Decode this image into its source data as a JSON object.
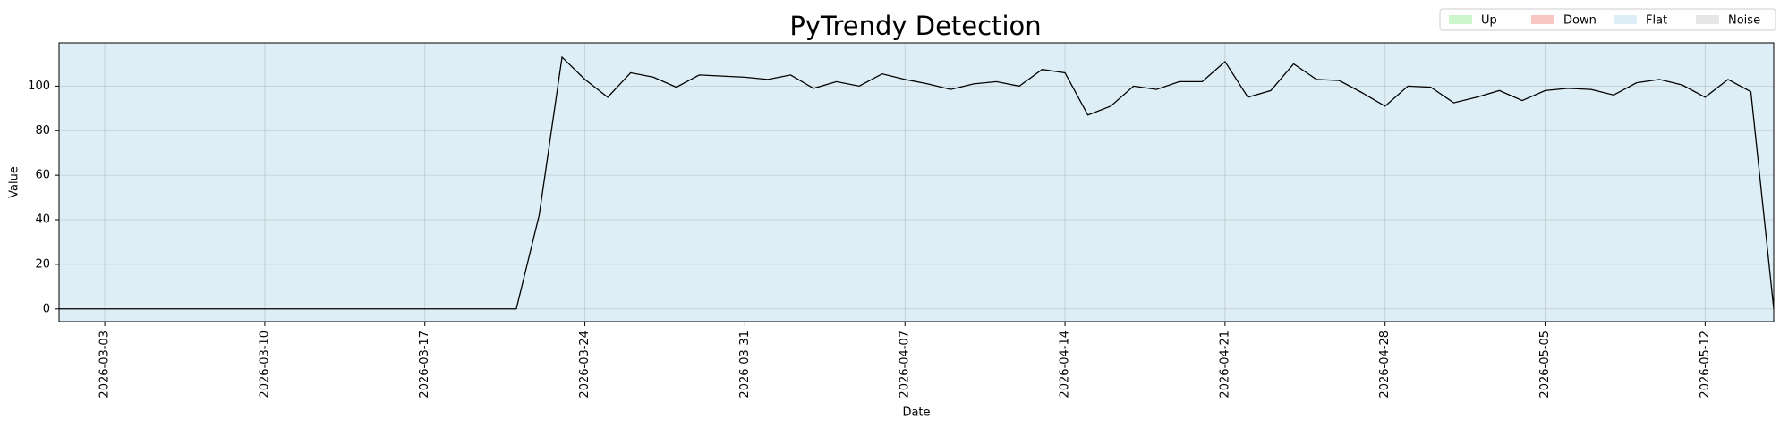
{
  "chart_data": {
    "type": "line",
    "title": "PyTrendy Detection",
    "x_label": "Date",
    "y_label": "Value",
    "x": [
      "2026-03-01",
      "2026-03-02",
      "2026-03-03",
      "2026-03-04",
      "2026-03-05",
      "2026-03-06",
      "2026-03-07",
      "2026-03-08",
      "2026-03-09",
      "2026-03-10",
      "2026-03-11",
      "2026-03-12",
      "2026-03-13",
      "2026-03-14",
      "2026-03-15",
      "2026-03-16",
      "2026-03-17",
      "2026-03-18",
      "2026-03-19",
      "2026-03-20",
      "2026-03-21",
      "2026-03-22",
      "2026-03-23",
      "2026-03-24",
      "2026-03-25",
      "2026-03-26",
      "2026-03-27",
      "2026-03-28",
      "2026-03-29",
      "2026-03-30",
      "2026-03-31",
      "2026-04-01",
      "2026-04-02",
      "2026-04-03",
      "2026-04-04",
      "2026-04-05",
      "2026-04-06",
      "2026-04-07",
      "2026-04-08",
      "2026-04-09",
      "2026-04-10",
      "2026-04-11",
      "2026-04-12",
      "2026-04-13",
      "2026-04-14",
      "2026-04-15",
      "2026-04-16",
      "2026-04-17",
      "2026-04-18",
      "2026-04-19",
      "2026-04-20",
      "2026-04-21",
      "2026-04-22",
      "2026-04-23",
      "2026-04-24",
      "2026-04-25",
      "2026-04-26",
      "2026-04-27",
      "2026-04-28",
      "2026-04-29",
      "2026-04-30",
      "2026-05-01",
      "2026-05-02",
      "2026-05-03",
      "2026-05-04",
      "2026-05-05",
      "2026-05-06",
      "2026-05-07",
      "2026-05-08",
      "2026-05-09",
      "2026-05-10",
      "2026-05-11",
      "2026-05-12",
      "2026-05-13",
      "2026-05-14",
      "2026-05-15"
    ],
    "series": [
      {
        "name": "Value",
        "color": "#000000",
        "values": [
          0,
          0,
          0,
          0,
          0,
          0,
          0,
          0,
          0,
          0,
          0,
          0,
          0,
          0,
          0,
          0,
          0,
          0,
          0,
          0,
          0,
          42,
          113,
          103,
          95,
          106,
          104,
          99.5,
          105,
          104.5,
          104,
          103,
          105,
          99,
          102,
          100,
          105.5,
          103,
          101,
          98.5,
          101,
          102,
          100,
          107.5,
          106,
          87,
          91,
          100,
          98.5,
          102,
          102,
          111,
          95,
          98,
          110,
          103,
          102.5,
          97,
          91,
          100,
          99.5,
          92.5,
          95,
          98,
          93.5,
          98,
          99,
          98.5,
          96,
          101.5,
          103,
          100.5,
          95,
          103,
          97.5,
          0
        ]
      }
    ],
    "regions": [
      {
        "name": "Flat",
        "start": "2026-03-01",
        "end": "2026-05-15"
      }
    ],
    "legend": [
      {
        "name": "Up",
        "color": "#ccf5cc"
      },
      {
        "name": "Down",
        "color": "#f7c6c2"
      },
      {
        "name": "Flat",
        "color": "#ddeef6"
      },
      {
        "name": "Noise",
        "color": "#e6e6e6"
      }
    ],
    "legend_position": "upper right",
    "xlim": [
      "2026-03-01",
      "2026-05-15"
    ],
    "xticks": [
      "2026-03-03",
      "2026-03-10",
      "2026-03-17",
      "2026-03-24",
      "2026-03-31",
      "2026-04-07",
      "2026-04-14",
      "2026-04-21",
      "2026-04-28",
      "2026-05-05",
      "2026-05-12"
    ],
    "ylim": [
      -5.7,
      119.4
    ],
    "yticks": [
      0,
      20,
      40,
      60,
      80,
      100
    ],
    "grid": true
  }
}
